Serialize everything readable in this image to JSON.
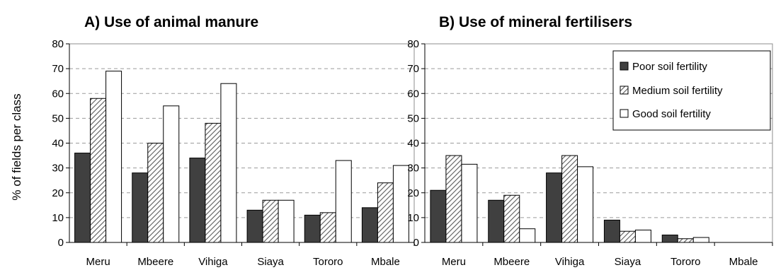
{
  "colors": {
    "poor": "#404040",
    "medium_hatch": "#7a7a7a",
    "good": "#ffffff",
    "axis": "#000000",
    "grid": "#9a9a9a"
  },
  "chart_data": [
    {
      "type": "bar",
      "title": "A) Use of animal manure",
      "ylabel": "% of fields per class",
      "xlabel": "",
      "ylim": [
        0,
        80
      ],
      "yticks": [
        0,
        10,
        20,
        30,
        40,
        50,
        60,
        70,
        80
      ],
      "ytick_labels": [
        "0",
        "10",
        "20",
        "30",
        "40",
        "50",
        "60",
        "70",
        "80"
      ],
      "grid": "dashed horizontal",
      "categories": [
        "Meru",
        "Mbeere",
        "Vihiga",
        "Siaya",
        "Tororo",
        "Mbale"
      ],
      "series": [
        {
          "name": "Poor soil fertility",
          "values": [
            36,
            28,
            34,
            13,
            11,
            14
          ]
        },
        {
          "name": "Medium soil fertility",
          "values": [
            58,
            40,
            48,
            17,
            12,
            24
          ]
        },
        {
          "name": "Good soil fertility",
          "values": [
            69,
            55,
            64,
            17,
            33,
            31
          ]
        }
      ]
    },
    {
      "type": "bar",
      "title": "B) Use of mineral fertilisers",
      "ylabel": "",
      "xlabel": "",
      "ylim": [
        0,
        80
      ],
      "yticks": [
        0,
        10,
        20,
        30,
        40,
        50,
        60,
        70,
        80
      ],
      "ytick_labels": [
        "0",
        "10",
        "20",
        "30",
        "40",
        "50",
        "60",
        "70",
        "80"
      ],
      "grid": "dashed horizontal",
      "legend_position": "top-right",
      "categories": [
        "Meru",
        "Mbeere",
        "Vihiga",
        "Siaya",
        "Tororo",
        "Mbale"
      ],
      "series": [
        {
          "name": "Poor soil fertility",
          "values": [
            21,
            17,
            28,
            9,
            3,
            0
          ]
        },
        {
          "name": "Medium soil fertility",
          "values": [
            35,
            19,
            35,
            4.5,
            1.5,
            0
          ]
        },
        {
          "name": "Good soil fertility",
          "values": [
            31.5,
            5.5,
            30.5,
            5,
            2,
            0
          ]
        }
      ]
    }
  ]
}
